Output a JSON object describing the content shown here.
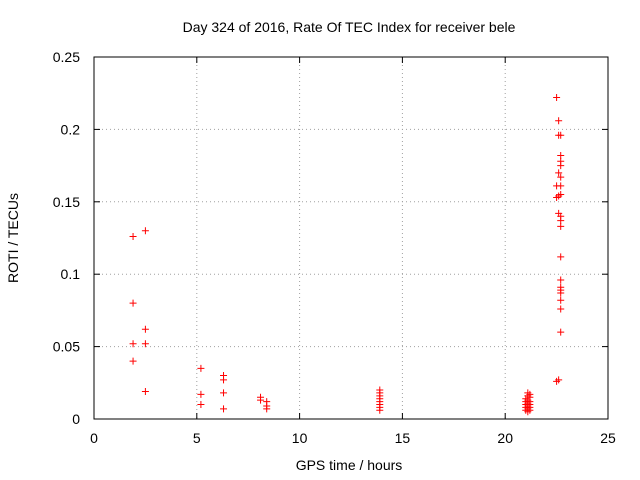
{
  "chart_data": {
    "type": "scatter",
    "title": "Day 324 of 2016, Rate Of TEC Index for receiver bele",
    "xlabel": "GPS time / hours",
    "ylabel": "ROTI / TECUs",
    "xlim": [
      0,
      25
    ],
    "ylim": [
      0,
      0.25
    ],
    "xticks": [
      0,
      5,
      10,
      15,
      20,
      25
    ],
    "xtick_labels": [
      "0",
      "5",
      "10",
      "15",
      "20",
      "25"
    ],
    "yticks": [
      0,
      0.05,
      0.1,
      0.15,
      0.2,
      0.25
    ],
    "ytick_labels": [
      "0",
      "0.05",
      "0.1",
      "0.15",
      "0.2",
      "0.25"
    ],
    "grid": true,
    "marker": "plus",
    "color": "#ff0000",
    "series": [
      {
        "points": [
          [
            1.9,
            0.126
          ],
          [
            1.9,
            0.08
          ],
          [
            1.9,
            0.052
          ],
          [
            1.9,
            0.04
          ],
          [
            2.5,
            0.13
          ],
          [
            2.5,
            0.062
          ],
          [
            2.5,
            0.052
          ],
          [
            2.5,
            0.019
          ],
          [
            5.2,
            0.035
          ],
          [
            5.2,
            0.017
          ],
          [
            5.2,
            0.01
          ],
          [
            6.3,
            0.03
          ],
          [
            6.3,
            0.027
          ],
          [
            6.3,
            0.018
          ],
          [
            6.3,
            0.007
          ],
          [
            8.1,
            0.015
          ],
          [
            8.1,
            0.013
          ],
          [
            8.4,
            0.012
          ],
          [
            8.4,
            0.009
          ],
          [
            8.4,
            0.007
          ],
          [
            13.9,
            0.02
          ],
          [
            13.9,
            0.018
          ],
          [
            13.9,
            0.016
          ],
          [
            13.9,
            0.014
          ],
          [
            13.9,
            0.012
          ],
          [
            13.9,
            0.01
          ],
          [
            13.9,
            0.008
          ],
          [
            13.9,
            0.006
          ],
          [
            21.0,
            0.014
          ],
          [
            21.0,
            0.012
          ],
          [
            21.0,
            0.01
          ],
          [
            21.0,
            0.008
          ],
          [
            21.0,
            0.006
          ],
          [
            21.1,
            0.018
          ],
          [
            21.1,
            0.016
          ],
          [
            21.1,
            0.013
          ],
          [
            21.1,
            0.011
          ],
          [
            21.1,
            0.009
          ],
          [
            21.1,
            0.007
          ],
          [
            21.1,
            0.005
          ],
          [
            21.2,
            0.017
          ],
          [
            21.2,
            0.015
          ],
          [
            21.2,
            0.012
          ],
          [
            21.2,
            0.01
          ],
          [
            21.2,
            0.008
          ],
          [
            21.2,
            0.006
          ],
          [
            22.5,
            0.222
          ],
          [
            22.5,
            0.161
          ],
          [
            22.5,
            0.153
          ],
          [
            22.5,
            0.026
          ],
          [
            22.6,
            0.206
          ],
          [
            22.6,
            0.196
          ],
          [
            22.6,
            0.17
          ],
          [
            22.6,
            0.154
          ],
          [
            22.6,
            0.142
          ],
          [
            22.6,
            0.027
          ],
          [
            22.7,
            0.196
          ],
          [
            22.7,
            0.182
          ],
          [
            22.7,
            0.178
          ],
          [
            22.7,
            0.175
          ],
          [
            22.7,
            0.167
          ],
          [
            22.7,
            0.161
          ],
          [
            22.7,
            0.155
          ],
          [
            22.7,
            0.14
          ],
          [
            22.7,
            0.137
          ],
          [
            22.7,
            0.133
          ],
          [
            22.7,
            0.112
          ],
          [
            22.7,
            0.096
          ],
          [
            22.7,
            0.091
          ],
          [
            22.7,
            0.089
          ],
          [
            22.7,
            0.087
          ],
          [
            22.7,
            0.082
          ],
          [
            22.7,
            0.076
          ],
          [
            22.7,
            0.06
          ]
        ]
      }
    ]
  }
}
